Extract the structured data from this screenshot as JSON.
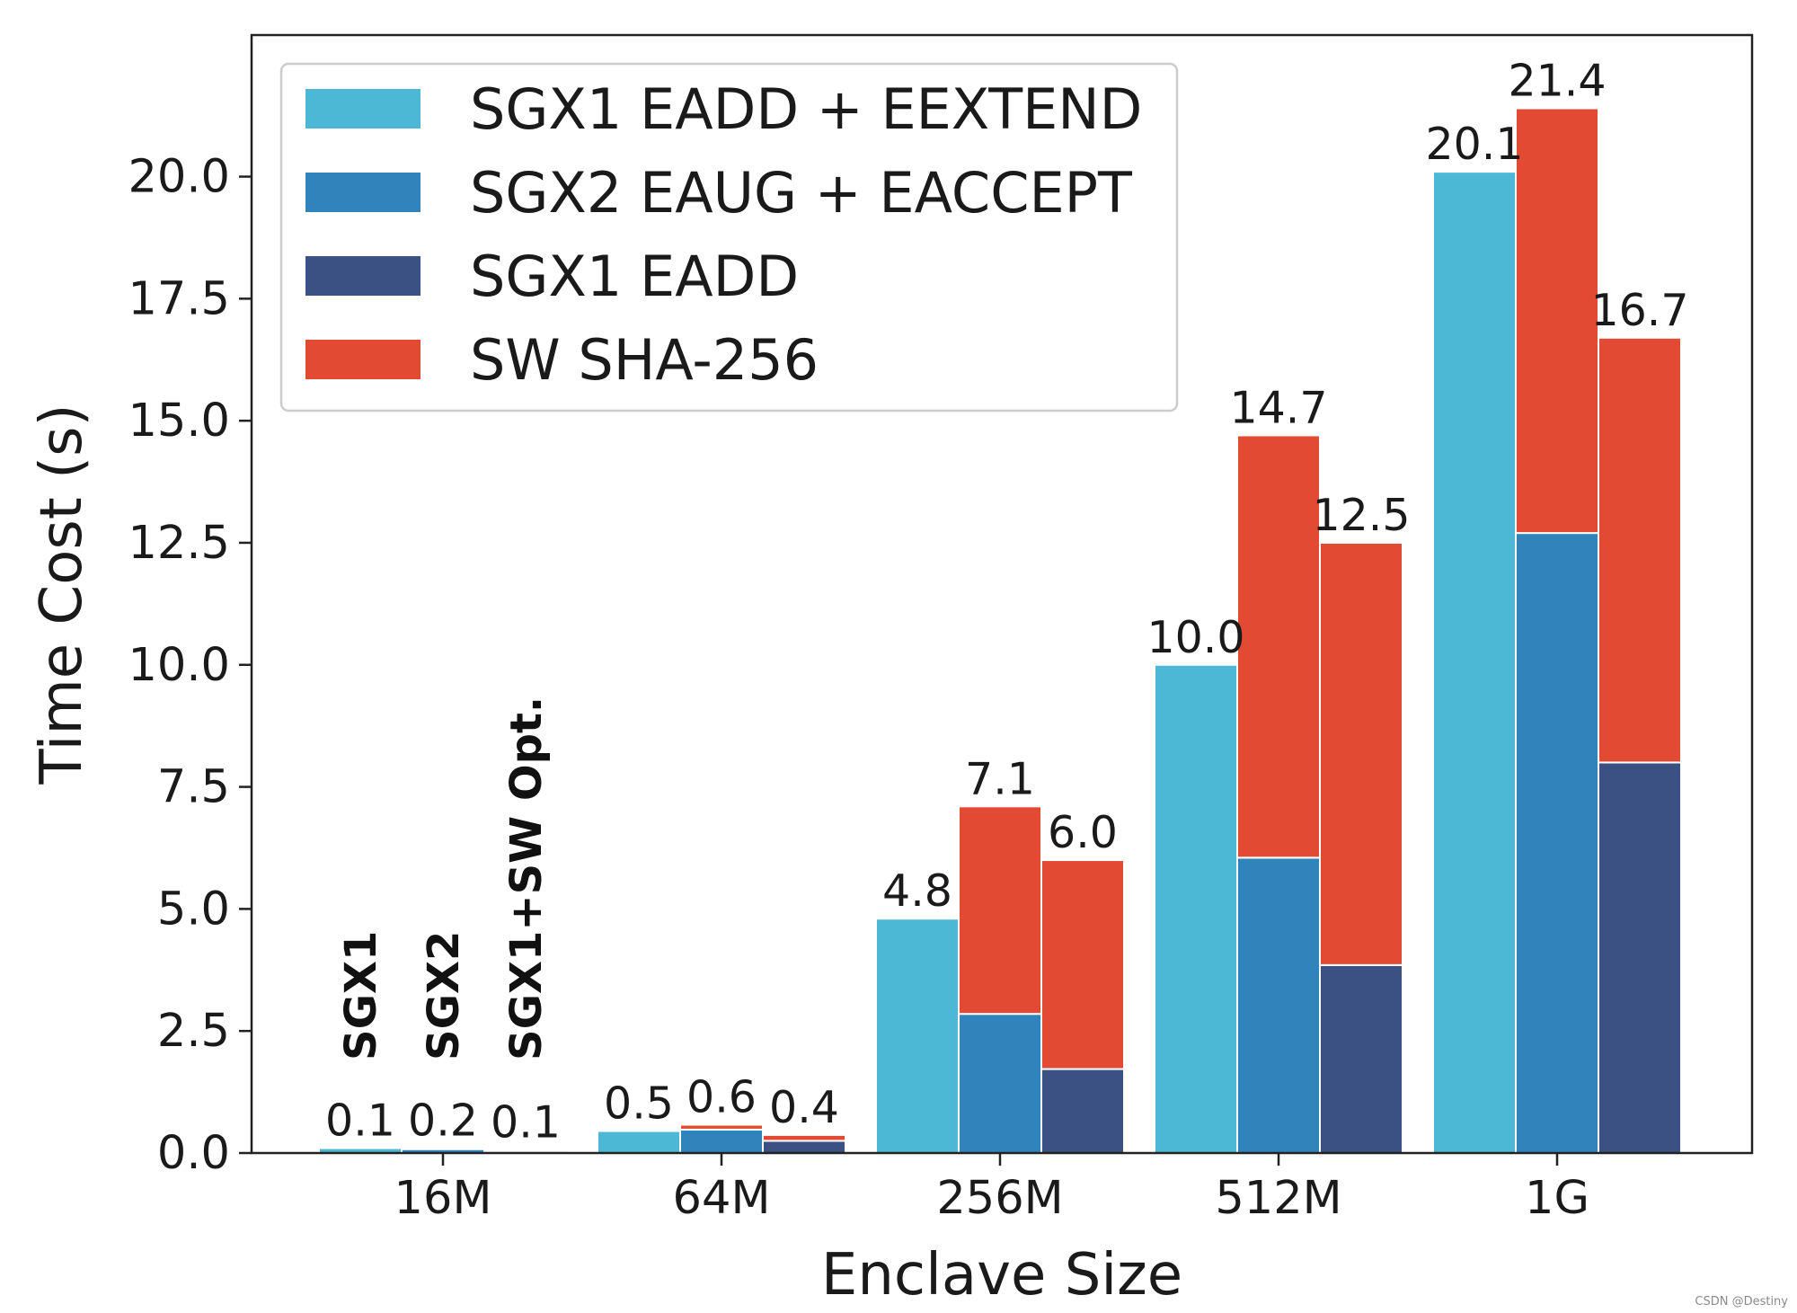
{
  "chart_data": {
    "type": "bar",
    "stacked_groups": true,
    "xlabel": "Enclave Size",
    "ylabel": "Time Cost (s)",
    "ylim": [
      0,
      22.9
    ],
    "yticks": [
      "0.0",
      "2.5",
      "5.0",
      "7.5",
      "10.0",
      "12.5",
      "15.0",
      "17.5",
      "20.0"
    ],
    "categories": [
      "16M",
      "64M",
      "256M",
      "512M",
      "1G"
    ],
    "bar_groups": [
      "SGX1",
      "SGX2",
      "SGX1+SW Opt."
    ],
    "legend": [
      {
        "name": "SGX1 EADD + EEXTEND",
        "color": "#4cb8d6"
      },
      {
        "name": "SGX2 EAUG + EACCEPT",
        "color": "#3184bb"
      },
      {
        "name": "SGX1 EADD",
        "color": "#3b5184"
      },
      {
        "name": "SW SHA-256",
        "color": "#e34a33"
      }
    ],
    "legend_position": "top-left",
    "grid": false,
    "bars": [
      {
        "category": "16M",
        "group": "SGX1",
        "segments": [
          {
            "series": "SGX1 EADD + EEXTEND",
            "value": 0.1
          }
        ],
        "total_label": "0.1"
      },
      {
        "category": "16M",
        "group": "SGX2",
        "segments": [
          {
            "series": "SGX2 EAUG + EACCEPT",
            "value": 0.08
          },
          {
            "series": "SW SHA-256",
            "value": 0.02
          }
        ],
        "total_label": "0.2"
      },
      {
        "category": "16M",
        "group": "SGX1+SW Opt.",
        "segments": [
          {
            "series": "SGX1 EADD",
            "value": 0.04
          },
          {
            "series": "SW SHA-256",
            "value": 0.02
          }
        ],
        "total_label": "0.1"
      },
      {
        "category": "64M",
        "group": "SGX1",
        "segments": [
          {
            "series": "SGX1 EADD + EEXTEND",
            "value": 0.45
          }
        ],
        "total_label": "0.5"
      },
      {
        "category": "64M",
        "group": "SGX2",
        "segments": [
          {
            "series": "SGX2 EAUG + EACCEPT",
            "value": 0.48
          },
          {
            "series": "SW SHA-256",
            "value": 0.1
          }
        ],
        "total_label": "0.6"
      },
      {
        "category": "64M",
        "group": "SGX1+SW Opt.",
        "segments": [
          {
            "series": "SGX1 EADD",
            "value": 0.25
          },
          {
            "series": "SW SHA-256",
            "value": 0.12
          }
        ],
        "total_label": "0.4"
      },
      {
        "category": "256M",
        "group": "SGX1",
        "segments": [
          {
            "series": "SGX1 EADD + EEXTEND",
            "value": 4.8
          }
        ],
        "total_label": "4.8"
      },
      {
        "category": "256M",
        "group": "SGX2",
        "segments": [
          {
            "series": "SGX2 EAUG + EACCEPT",
            "value": 2.85
          },
          {
            "series": "SW SHA-256",
            "value": 4.25
          }
        ],
        "total_label": "7.1"
      },
      {
        "category": "256M",
        "group": "SGX1+SW Opt.",
        "segments": [
          {
            "series": "SGX1 EADD",
            "value": 1.72
          },
          {
            "series": "SW SHA-256",
            "value": 4.28
          }
        ],
        "total_label": "6.0"
      },
      {
        "category": "512M",
        "group": "SGX1",
        "segments": [
          {
            "series": "SGX1 EADD + EEXTEND",
            "value": 10.0
          }
        ],
        "total_label": "10.0"
      },
      {
        "category": "512M",
        "group": "SGX2",
        "segments": [
          {
            "series": "SGX2 EAUG + EACCEPT",
            "value": 6.05
          },
          {
            "series": "SW SHA-256",
            "value": 8.65
          }
        ],
        "total_label": "14.7"
      },
      {
        "category": "512M",
        "group": "SGX1+SW Opt.",
        "segments": [
          {
            "series": "SGX1 EADD",
            "value": 3.85
          },
          {
            "series": "SW SHA-256",
            "value": 8.65
          }
        ],
        "total_label": "12.5"
      },
      {
        "category": "1G",
        "group": "SGX1",
        "segments": [
          {
            "series": "SGX1 EADD + EEXTEND",
            "value": 20.1
          }
        ],
        "total_label": "20.1"
      },
      {
        "category": "1G",
        "group": "SGX2",
        "segments": [
          {
            "series": "SGX2 EAUG + EACCEPT",
            "value": 12.7
          },
          {
            "series": "SW SHA-256",
            "value": 8.7
          }
        ],
        "total_label": "21.4"
      },
      {
        "category": "1G",
        "group": "SGX1+SW Opt.",
        "segments": [
          {
            "series": "SGX1 EADD",
            "value": 8.0
          },
          {
            "series": "SW SHA-256",
            "value": 8.7
          }
        ],
        "total_label": "16.7"
      }
    ]
  },
  "watermark": "CSDN @Destiny"
}
